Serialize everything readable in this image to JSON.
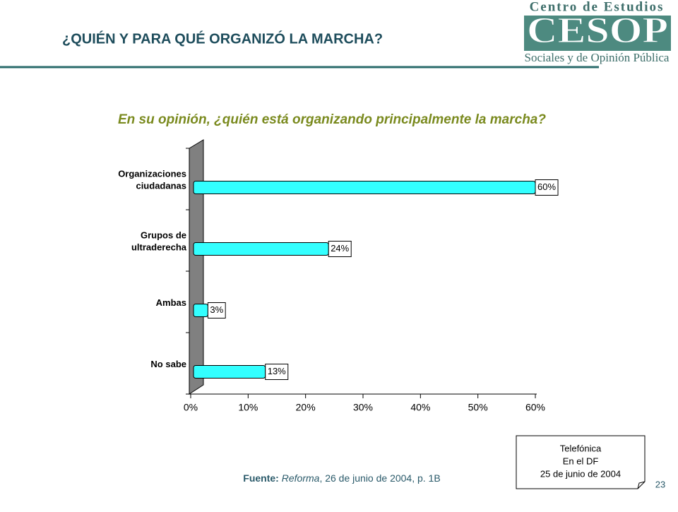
{
  "header": {
    "title": "¿QUIÉN Y PARA QUÉ  ORGANIZÓ LA MARCHA?",
    "logo": {
      "top": "Centro de Estudios",
      "mark": "CESOP",
      "bottom": "Sociales y de Opinión Pública"
    }
  },
  "chart_data": {
    "type": "hbar",
    "title": "En su opinión, ¿quién está organizando principalmente la marcha?",
    "categories": [
      [
        "Organizaciones",
        "ciudadanas"
      ],
      [
        "Grupos de",
        "ultraderecha"
      ],
      [
        "Ambas"
      ],
      [
        "No sabe"
      ]
    ],
    "values": [
      60,
      24,
      3,
      13
    ],
    "value_labels": [
      "60%",
      "24%",
      "3%",
      "13%"
    ],
    "color": "#33ffff",
    "xlim": [
      0,
      60
    ],
    "xticks": [
      {
        "value": 0,
        "label": "0%"
      },
      {
        "value": 10,
        "label": "10%"
      },
      {
        "value": 20,
        "label": "20%"
      },
      {
        "value": 30,
        "label": "30%"
      },
      {
        "value": 40,
        "label": "40%"
      },
      {
        "value": 50,
        "label": "50%"
      },
      {
        "value": 60,
        "label": "60%"
      }
    ]
  },
  "source": {
    "label": "Fuente:",
    "publication": "Reforma",
    "rest": ", 26 de junio de 2004, p. 1B"
  },
  "note": [
    "Telefónica",
    "En el DF",
    "25 de junio de 2004"
  ],
  "page_number": "23"
}
